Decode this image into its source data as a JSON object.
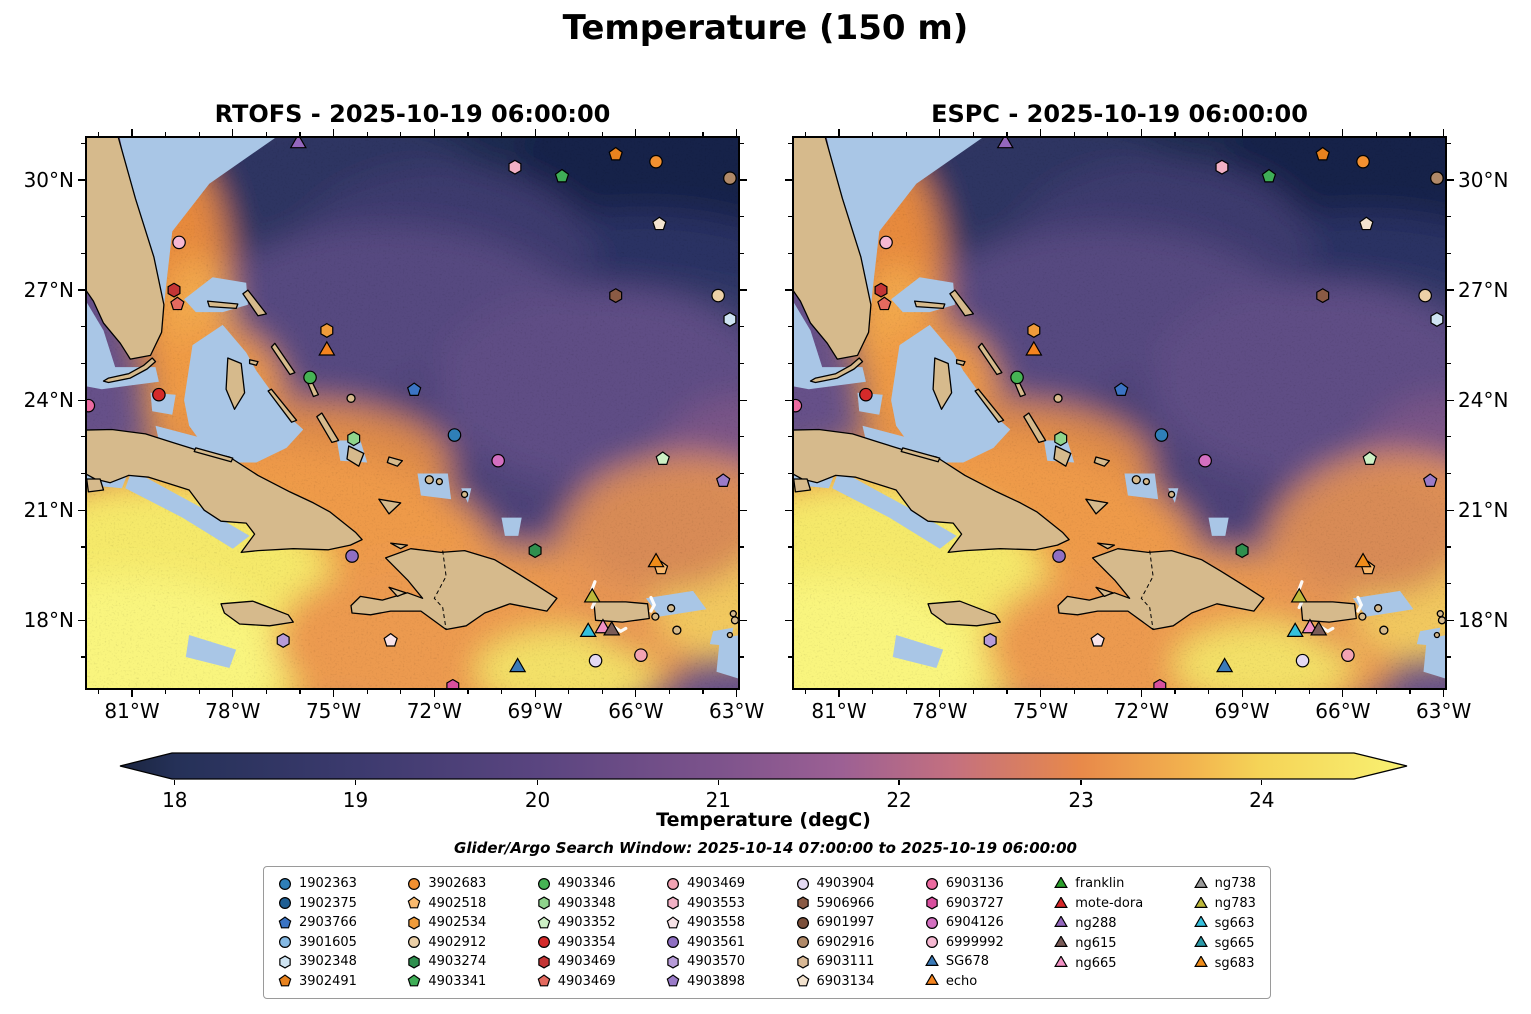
{
  "figure": {
    "title": "Temperature (150 m)",
    "subtitle": "Glider/Argo Search Window: 2025-10-14 07:00:00 to 2025-10-19 06:00:00"
  },
  "panels": [
    {
      "title": "RTOFS - 2025-10-19 06:00:00"
    },
    {
      "title": "ESPC - 2025-10-19 06:00:00"
    }
  ],
  "axes": {
    "x_tick_labels": [
      "81°W",
      "78°W",
      "75°W",
      "72°W",
      "69°W",
      "66°W",
      "63°W"
    ],
    "x_major_lons": [
      -81,
      -78,
      -75,
      -72,
      -69,
      -66,
      -63
    ],
    "y_tick_labels": [
      "30°N",
      "27°N",
      "24°N",
      "21°N",
      "18°N"
    ],
    "y_major_lats": [
      30,
      27,
      24,
      21,
      18
    ]
  },
  "colorbar": {
    "label": "Temperature (degC)",
    "ticks": [
      "18",
      "19",
      "20",
      "21",
      "22",
      "23",
      "24"
    ],
    "tick_values": [
      18,
      19,
      20,
      21,
      22,
      23,
      24
    ],
    "tick_pcts": [
      4.4,
      18.4,
      32.5,
      46.5,
      60.5,
      74.6,
      88.6
    ],
    "stops": [
      {
        "pct": 0,
        "color": "#1b2540"
      },
      {
        "pct": 4.4,
        "color": "#253158"
      },
      {
        "pct": 18.4,
        "color": "#3c3a6e"
      },
      {
        "pct": 32.5,
        "color": "#5a4580"
      },
      {
        "pct": 46.5,
        "color": "#7d538c"
      },
      {
        "pct": 56.0,
        "color": "#9c6094"
      },
      {
        "pct": 64.7,
        "color": "#c4707f"
      },
      {
        "pct": 74.6,
        "color": "#e8894a"
      },
      {
        "pct": 83.0,
        "color": "#f2b24e"
      },
      {
        "pct": 88.6,
        "color": "#f5d457"
      },
      {
        "pct": 100,
        "color": "#f8f172"
      }
    ]
  },
  "map_colors": {
    "land": "#d6ba8c",
    "shallow_mask": "#a9c6e6",
    "coastline": "#000000",
    "base_ocean": "#665089"
  },
  "legend": {
    "columns": [
      {
        "items": [
          {
            "label": "1902363",
            "shape": "circle",
            "color": "#2f7fb8"
          },
          {
            "label": "1902375",
            "shape": "circle",
            "color": "#1f5f94"
          },
          {
            "label": "2903766",
            "shape": "pentagon",
            "color": "#3b74c4"
          },
          {
            "label": "3901605",
            "shape": "circle",
            "color": "#85b9e3"
          },
          {
            "label": "3902348",
            "shape": "hexagon",
            "color": "#cfe4f2"
          },
          {
            "label": "3902491",
            "shape": "pentagon",
            "color": "#e8821e"
          }
        ]
      },
      {
        "items": [
          {
            "label": "3902683",
            "shape": "circle",
            "color": "#f29030"
          },
          {
            "label": "4902518",
            "shape": "pentagon",
            "color": "#f8b96e"
          },
          {
            "label": "4902534",
            "shape": "hexagon",
            "color": "#ef9b3a"
          },
          {
            "label": "4902912",
            "shape": "circle",
            "color": "#ecd0a7"
          },
          {
            "label": "4903274",
            "shape": "hexagon",
            "color": "#2f8f4e"
          },
          {
            "label": "4903341",
            "shape": "pentagon",
            "color": "#3fae57"
          }
        ]
      },
      {
        "items": [
          {
            "label": "4903346",
            "shape": "circle",
            "color": "#46b354"
          },
          {
            "label": "4903348",
            "shape": "hexagon",
            "color": "#8fd48c"
          },
          {
            "label": "4903352",
            "shape": "pentagon",
            "color": "#cdf0c5"
          },
          {
            "label": "4903354",
            "shape": "circle",
            "color": "#d42a2a"
          },
          {
            "label": "4903469",
            "shape": "hexagon",
            "color": "#c43535"
          },
          {
            "label": "4903469",
            "shape": "pentagon",
            "color": "#e46a5f"
          }
        ]
      },
      {
        "items": [
          {
            "label": "4903469",
            "shape": "circle",
            "color": "#f2a3b3"
          },
          {
            "label": "4903553",
            "shape": "hexagon",
            "color": "#f2b1c5"
          },
          {
            "label": "4903558",
            "shape": "pentagon",
            "color": "#f8e3e8"
          },
          {
            "label": "4903561",
            "shape": "circle",
            "color": "#8f6fc2"
          },
          {
            "label": "4903570",
            "shape": "hexagon",
            "color": "#b79bd8"
          },
          {
            "label": "4903898",
            "shape": "pentagon",
            "color": "#9a7bc8"
          }
        ]
      },
      {
        "items": [
          {
            "label": "4903904",
            "shape": "circle",
            "color": "#e4d9f2"
          },
          {
            "label": "5906966",
            "shape": "hexagon",
            "color": "#8a5a44"
          },
          {
            "label": "6901997",
            "shape": "circle",
            "color": "#7b4f3a"
          },
          {
            "label": "6902916",
            "shape": "circle",
            "color": "#b08968"
          },
          {
            "label": "6903111",
            "shape": "hexagon",
            "color": "#d9b996"
          },
          {
            "label": "6903134",
            "shape": "pentagon",
            "color": "#f3e3cf"
          }
        ]
      },
      {
        "items": [
          {
            "label": "6903136",
            "shape": "circle",
            "color": "#ec6aa0"
          },
          {
            "label": "6903727",
            "shape": "hexagon",
            "color": "#d84f9e"
          },
          {
            "label": "6904126",
            "shape": "circle",
            "color": "#d36fc0"
          },
          {
            "label": "6999992",
            "shape": "circle",
            "color": "#f6b8d2"
          },
          {
            "label": "SG678",
            "shape": "triangle",
            "color": "#3a7ab8"
          },
          {
            "label": "echo",
            "shape": "triangle",
            "color": "#f5841f"
          }
        ]
      },
      {
        "items": [
          {
            "label": "franklin",
            "shape": "triangle",
            "color": "#2ca02c"
          },
          {
            "label": "mote-dora",
            "shape": "triangle",
            "color": "#d62728"
          },
          {
            "label": "ng288",
            "shape": "triangle",
            "color": "#9467bd"
          },
          {
            "label": "ng615",
            "shape": "triangle",
            "color": "#7a5c58"
          },
          {
            "label": "ng665",
            "shape": "triangle",
            "color": "#f291c4"
          }
        ]
      },
      {
        "items": [
          {
            "label": "ng738",
            "shape": "triangle",
            "color": "#9a9a9a"
          },
          {
            "label": "ng783",
            "shape": "triangle",
            "color": "#bdb83a"
          },
          {
            "label": "sg663",
            "shape": "triangle",
            "color": "#35c0dc"
          },
          {
            "label": "sg665",
            "shape": "triangle",
            "color": "#2b9aa8"
          },
          {
            "label": "sg683",
            "shape": "triangle",
            "color": "#ef8c1a"
          }
        ]
      }
    ]
  },
  "chart_data": {
    "type": "heatmap",
    "title": "Temperature (150 m)",
    "panels": [
      "RTOFS - 2025-10-19 06:00:00",
      "ESPC - 2025-10-19 06:00:00"
    ],
    "variable": "Temperature (degC)",
    "depth_m": 150,
    "extent": {
      "lon_min": -82.4,
      "lon_max": -62.9,
      "lat_min": 16.1,
      "lat_max": 31.2
    },
    "x_ticks_deg_west": [
      81,
      78,
      75,
      72,
      69,
      66,
      63
    ],
    "y_ticks_deg_north": [
      30,
      27,
      24,
      21,
      18
    ],
    "colorbar_range_degC": [
      18,
      24
    ],
    "colorbar_extended_both_ends": true,
    "search_window": "2025-10-14 07:00:00 to 2025-10-19 06:00:00",
    "field_summary": "Cold (~18-20 degC, dark navy/purple) water NE of the Bahamas; warm (~23-24+ degC, orange/yellow) water in the NW Caribbean, SW corner, Florida Strait and south of Hispaniola/Puerto Rico; shallow banks masked light blue; land tan.",
    "markers": [
      {
        "id": "ng288",
        "shape": "triangle",
        "color": "#9467bd",
        "lon": -76.05,
        "lat": 31.0
      },
      {
        "id": "3902491",
        "shape": "pentagon",
        "color": "#e8821e",
        "lon": -66.6,
        "lat": 30.7
      },
      {
        "id": "3902683",
        "shape": "circle",
        "color": "#f29030",
        "lon": -65.4,
        "lat": 30.5
      },
      {
        "id": "4903553",
        "shape": "hexagon",
        "color": "#f2b1c5",
        "lon": -69.6,
        "lat": 30.35
      },
      {
        "id": "4903341",
        "shape": "pentagon",
        "color": "#3fae57",
        "lon": -68.2,
        "lat": 30.1
      },
      {
        "id": "6902916",
        "shape": "circle",
        "color": "#b08968",
        "lon": -63.2,
        "lat": 30.05
      },
      {
        "id": "6903134",
        "shape": "pentagon",
        "color": "#f3e3cf",
        "lon": -65.3,
        "lat": 28.8
      },
      {
        "id": "6999992",
        "shape": "circle",
        "color": "#f6b8d2",
        "lon": -79.6,
        "lat": 28.3
      },
      {
        "id": "4903469",
        "shape": "hexagon",
        "color": "#c43535",
        "lon": -79.75,
        "lat": 27.0
      },
      {
        "id": "4903469",
        "shape": "pentagon",
        "color": "#e46a5f",
        "lon": -79.65,
        "lat": 26.62
      },
      {
        "id": "5906966",
        "shape": "hexagon",
        "color": "#8a5a44",
        "lon": -66.6,
        "lat": 26.85
      },
      {
        "id": "4902912",
        "shape": "circle",
        "color": "#ecd0a7",
        "lon": -63.55,
        "lat": 26.85
      },
      {
        "id": "3902348",
        "shape": "hexagon",
        "color": "#cfe4f2",
        "lon": -63.2,
        "lat": 26.2
      },
      {
        "id": "4902534",
        "shape": "hexagon",
        "color": "#ef9b3a",
        "lon": -75.2,
        "lat": 25.9
      },
      {
        "id": "echo",
        "shape": "triangle",
        "color": "#f5841f",
        "lon": -75.2,
        "lat": 25.35
      },
      {
        "id": "4903346",
        "shape": "circle",
        "color": "#46b354",
        "lon": -75.7,
        "lat": 24.62
      },
      {
        "id": "2903766",
        "shape": "pentagon",
        "color": "#3b74c4",
        "lon": -72.6,
        "lat": 24.28
      },
      {
        "id": "4903354",
        "shape": "circle",
        "color": "#d42a2a",
        "lon": -80.2,
        "lat": 24.15
      },
      {
        "id": "6903136",
        "shape": "circle",
        "color": "#ec6aa0",
        "lon": -82.3,
        "lat": 23.85
      },
      {
        "id": "4903348",
        "shape": "hexagon",
        "color": "#8fd48c",
        "lon": -74.4,
        "lat": 22.95
      },
      {
        "id": "1902363",
        "shape": "circle",
        "color": "#2f7fb8",
        "lon": -71.4,
        "lat": 23.05
      },
      {
        "id": "6904126",
        "shape": "circle",
        "color": "#d36fc0",
        "lon": -70.1,
        "lat": 22.35
      },
      {
        "id": "4903352",
        "shape": "pentagon",
        "color": "#cdf0c5",
        "lon": -65.2,
        "lat": 22.4
      },
      {
        "id": "4903898",
        "shape": "pentagon",
        "color": "#9a7bc8",
        "lon": -63.4,
        "lat": 21.8
      },
      {
        "id": "4903561",
        "shape": "circle",
        "color": "#8f6fc2",
        "lon": -74.45,
        "lat": 19.75
      },
      {
        "id": "4903274",
        "shape": "hexagon",
        "color": "#2f8f4e",
        "lon": -69.0,
        "lat": 19.9
      },
      {
        "id": "4902518",
        "shape": "pentagon",
        "color": "#f8b96e",
        "lon": -65.25,
        "lat": 19.42
      },
      {
        "id": "sg683",
        "shape": "triangle",
        "color": "#ef8c1a",
        "lon": -65.4,
        "lat": 19.58
      },
      {
        "id": "ng783",
        "shape": "triangle",
        "color": "#bdb83a",
        "lon": -67.3,
        "lat": 18.62
      },
      {
        "id": "sg663",
        "shape": "triangle",
        "color": "#35c0dc",
        "lon": -67.42,
        "lat": 17.68
      },
      {
        "id": "ng665",
        "shape": "triangle",
        "color": "#f291c4",
        "lon": -66.98,
        "lat": 17.78
      },
      {
        "id": "ng615",
        "shape": "triangle",
        "color": "#7a5c58",
        "lon": -66.72,
        "lat": 17.72
      },
      {
        "id": "4903570",
        "shape": "hexagon",
        "color": "#b79bd8",
        "lon": -76.5,
        "lat": 17.45
      },
      {
        "id": "4903558",
        "shape": "pentagon",
        "color": "#f8e3e8",
        "lon": -73.3,
        "lat": 17.45
      },
      {
        "id": "4903904",
        "shape": "circle",
        "color": "#e4d9f2",
        "lon": -67.2,
        "lat": 16.9
      },
      {
        "id": "4903469",
        "shape": "circle",
        "color": "#f2a3b3",
        "lon": -65.85,
        "lat": 17.05
      },
      {
        "id": "SG678",
        "shape": "triangle",
        "color": "#3a7ab8",
        "lon": -69.52,
        "lat": 16.72
      },
      {
        "id": "6903727",
        "shape": "hexagon",
        "color": "#d84f9e",
        "lon": -71.45,
        "lat": 16.2
      }
    ]
  }
}
